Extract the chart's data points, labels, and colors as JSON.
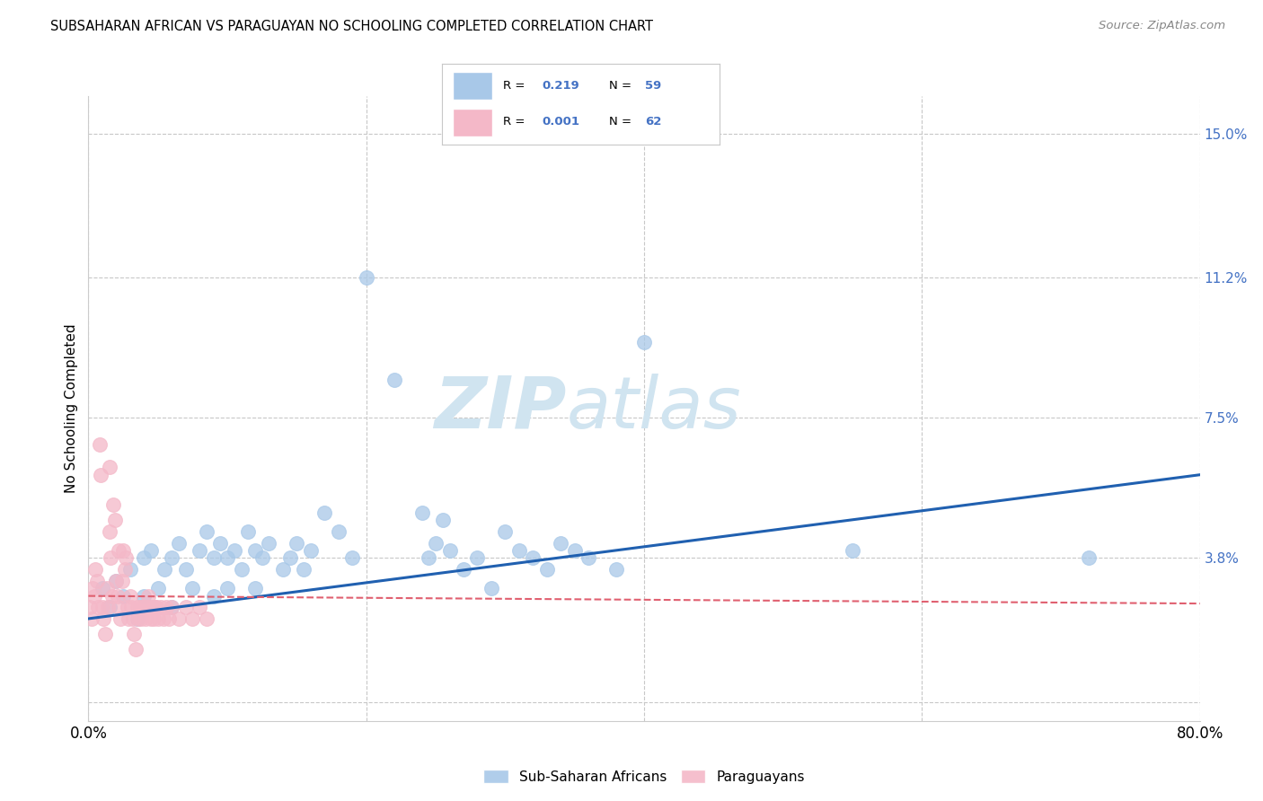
{
  "title": "SUBSAHARAN AFRICAN VS PARAGUAYAN NO SCHOOLING COMPLETED CORRELATION CHART",
  "source": "Source: ZipAtlas.com",
  "ylabel": "No Schooling Completed",
  "xlim": [
    0.0,
    0.8
  ],
  "ylim": [
    -0.005,
    0.16
  ],
  "xticks": [
    0.0,
    0.2,
    0.4,
    0.6,
    0.8
  ],
  "xticklabels": [
    "0.0%",
    "",
    "",
    "",
    "80.0%"
  ],
  "yticks": [
    0.0,
    0.038,
    0.075,
    0.112,
    0.15
  ],
  "yticklabels": [
    "",
    "3.8%",
    "7.5%",
    "11.2%",
    "15.0%"
  ],
  "legend_r_blue": "0.219",
  "legend_n_blue": "59",
  "legend_r_pink": "0.001",
  "legend_n_pink": "62",
  "legend_label_blue": "Sub-Saharan Africans",
  "legend_label_pink": "Paraguayans",
  "blue_color": "#a8c8e8",
  "pink_color": "#f4b8c8",
  "blue_line_color": "#2060b0",
  "pink_line_color": "#e06070",
  "watermark_zip": "ZIP",
  "watermark_atlas": "atlas",
  "watermark_color": "#d0e4f0",
  "grid_color": "#c8c8c8",
  "blue_scatter_x": [
    0.01,
    0.015,
    0.02,
    0.025,
    0.03,
    0.035,
    0.04,
    0.04,
    0.045,
    0.05,
    0.055,
    0.06,
    0.06,
    0.065,
    0.07,
    0.075,
    0.08,
    0.085,
    0.09,
    0.09,
    0.095,
    0.1,
    0.1,
    0.105,
    0.11,
    0.115,
    0.12,
    0.12,
    0.125,
    0.13,
    0.14,
    0.145,
    0.15,
    0.155,
    0.16,
    0.17,
    0.18,
    0.19,
    0.2,
    0.22,
    0.24,
    0.245,
    0.25,
    0.255,
    0.26,
    0.27,
    0.28,
    0.29,
    0.3,
    0.31,
    0.32,
    0.33,
    0.34,
    0.35,
    0.36,
    0.38,
    0.4,
    0.55,
    0.72
  ],
  "blue_scatter_y": [
    0.03,
    0.025,
    0.032,
    0.028,
    0.035,
    0.022,
    0.038,
    0.028,
    0.04,
    0.03,
    0.035,
    0.038,
    0.025,
    0.042,
    0.035,
    0.03,
    0.04,
    0.045,
    0.038,
    0.028,
    0.042,
    0.038,
    0.03,
    0.04,
    0.035,
    0.045,
    0.04,
    0.03,
    0.038,
    0.042,
    0.035,
    0.038,
    0.042,
    0.035,
    0.04,
    0.05,
    0.045,
    0.038,
    0.112,
    0.085,
    0.05,
    0.038,
    0.042,
    0.048,
    0.04,
    0.035,
    0.038,
    0.03,
    0.045,
    0.04,
    0.038,
    0.035,
    0.042,
    0.04,
    0.038,
    0.035,
    0.095,
    0.04,
    0.038
  ],
  "pink_scatter_x": [
    0.001,
    0.002,
    0.003,
    0.004,
    0.005,
    0.006,
    0.007,
    0.008,
    0.009,
    0.01,
    0.011,
    0.012,
    0.013,
    0.014,
    0.015,
    0.015,
    0.016,
    0.017,
    0.018,
    0.019,
    0.02,
    0.021,
    0.022,
    0.022,
    0.023,
    0.024,
    0.025,
    0.026,
    0.027,
    0.028,
    0.029,
    0.03,
    0.031,
    0.032,
    0.033,
    0.034,
    0.035,
    0.036,
    0.037,
    0.038,
    0.039,
    0.04,
    0.041,
    0.042,
    0.043,
    0.044,
    0.045,
    0.046,
    0.047,
    0.048,
    0.049,
    0.05,
    0.052,
    0.054,
    0.056,
    0.058,
    0.06,
    0.065,
    0.07,
    0.075,
    0.08,
    0.085
  ],
  "pink_scatter_y": [
    0.025,
    0.022,
    0.03,
    0.028,
    0.035,
    0.032,
    0.025,
    0.068,
    0.06,
    0.025,
    0.022,
    0.018,
    0.03,
    0.025,
    0.045,
    0.062,
    0.038,
    0.028,
    0.052,
    0.048,
    0.032,
    0.028,
    0.025,
    0.04,
    0.022,
    0.032,
    0.04,
    0.035,
    0.038,
    0.025,
    0.022,
    0.028,
    0.025,
    0.022,
    0.018,
    0.014,
    0.025,
    0.022,
    0.025,
    0.022,
    0.025,
    0.025,
    0.022,
    0.025,
    0.028,
    0.025,
    0.022,
    0.025,
    0.022,
    0.025,
    0.025,
    0.022,
    0.025,
    0.022,
    0.025,
    0.022,
    0.025,
    0.022,
    0.025,
    0.022,
    0.025,
    0.022
  ],
  "blue_line_x": [
    0.0,
    0.8
  ],
  "blue_line_y": [
    0.022,
    0.06
  ],
  "pink_line_x": [
    0.0,
    0.8
  ],
  "pink_line_y": [
    0.028,
    0.026
  ]
}
